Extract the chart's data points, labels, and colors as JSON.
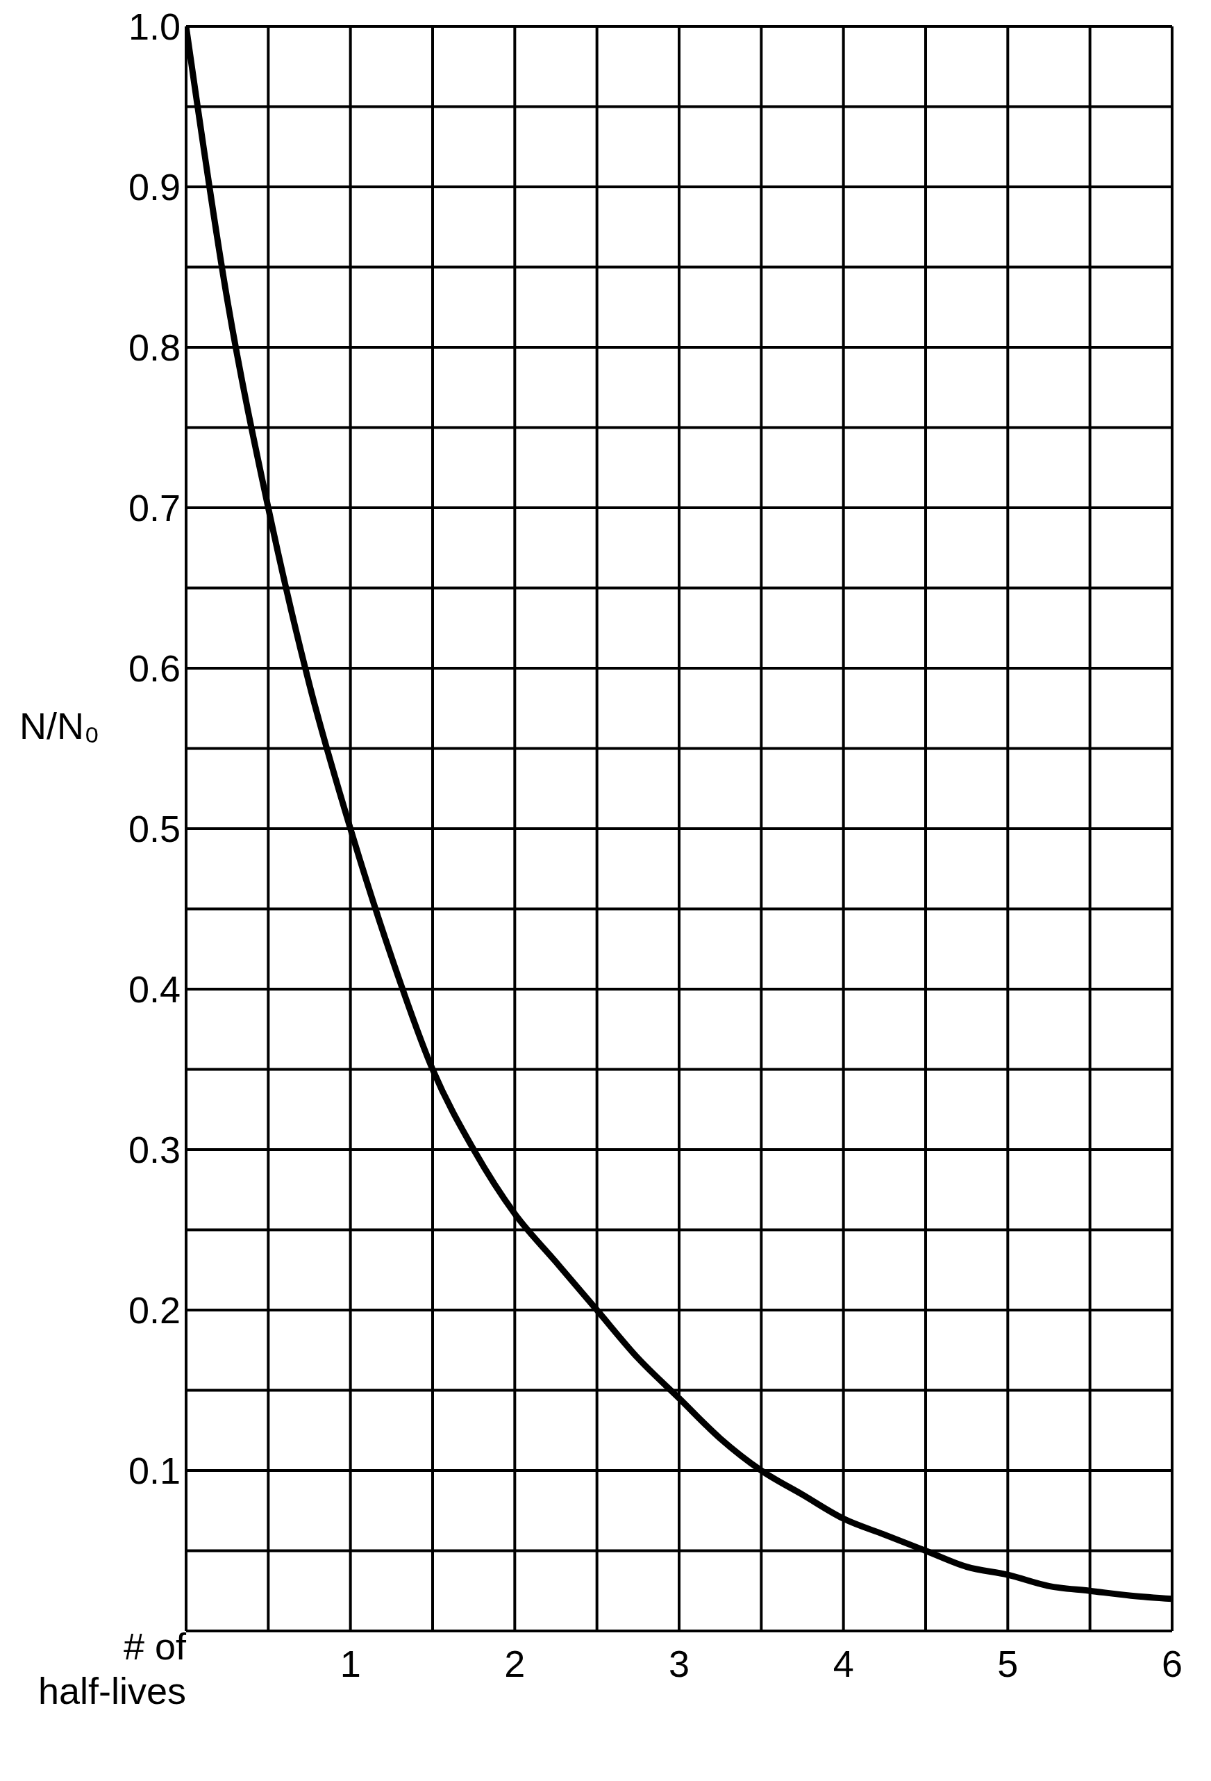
{
  "chart_data": {
    "type": "line",
    "xlabel": "# of half-lives",
    "ylabel": "N/N₀",
    "x": [
      0,
      0.25,
      0.5,
      0.75,
      1,
      1.25,
      1.5,
      1.75,
      2,
      2.25,
      2.5,
      2.75,
      3,
      3.25,
      3.5,
      3.75,
      4,
      4.25,
      4.5,
      4.75,
      5,
      5.25,
      5.5,
      5.75,
      6
    ],
    "series": [
      {
        "color": "#000000",
        "values": [
          1.0,
          0.83,
          0.7,
          0.59,
          0.5,
          0.42,
          0.35,
          0.3,
          0.26,
          0.23,
          0.2,
          0.17,
          0.145,
          0.12,
          0.1,
          0.085,
          0.07,
          0.06,
          0.05,
          0.04,
          0.035,
          0.028,
          0.025,
          0.022,
          0.02
        ]
      }
    ],
    "xlim": [
      0,
      6
    ],
    "xticks": [
      {
        "value": 0,
        "label": null
      },
      {
        "value": 0.5,
        "label": null
      },
      1,
      {
        "value": 1.5,
        "label": null
      },
      2,
      {
        "value": 2.5,
        "label": null
      },
      3,
      {
        "value": 3.5,
        "label": null
      },
      4,
      {
        "value": 4.5,
        "label": null
      },
      5,
      {
        "value": 5.5,
        "label": null
      },
      6
    ],
    "ylim": [
      0,
      1
    ],
    "yticks": [
      {
        "value": 0,
        "label": null
      },
      {
        "value": 0.05,
        "label": null
      },
      0.1,
      {
        "value": 0.15,
        "label": null
      },
      0.2,
      {
        "value": 0.25,
        "label": null
      },
      0.3,
      {
        "value": 0.35,
        "label": null
      },
      0.4,
      {
        "value": 0.45,
        "label": null
      },
      0.5,
      {
        "value": 0.55,
        "label": null
      },
      0.6,
      {
        "value": 0.65,
        "label": null
      },
      0.7,
      {
        "value": 0.75,
        "label": null
      },
      0.8,
      {
        "value": 0.85,
        "label": null
      },
      0.9,
      {
        "value": 0.95,
        "label": null
      },
      "1.0"
    ],
    "grid": true,
    "marker": "none",
    "line_style": "solid"
  }
}
